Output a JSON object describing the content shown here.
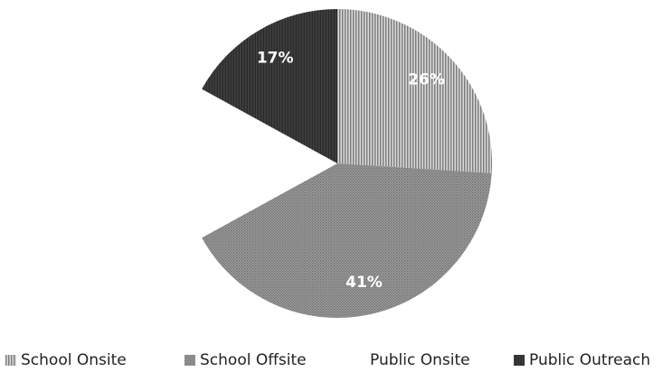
{
  "chart_data": {
    "type": "pie",
    "title": "",
    "categories": [
      "School Onsite",
      "School Offsite",
      "Public Onsite",
      "Public Outreach"
    ],
    "values": [
      26,
      41,
      16,
      17
    ],
    "labels": [
      "26%",
      "41%",
      "",
      "17%"
    ],
    "legend": {
      "placement": "bottom",
      "entries": [
        "School Onsite",
        "School Offsite",
        "Public Onsite",
        "Public Outreach"
      ]
    },
    "start_angle": "12 o'clock",
    "direction": "clockwise",
    "fills": [
      "vertical-stripes",
      "fine-dots",
      "none",
      "dense-dark"
    ],
    "colors": {
      "stripe_dark": "#7a7a7a",
      "stripe_light": "#d8d8d8",
      "dots_base": "#9a9a9a",
      "dots_dark": "#6b6b6b",
      "dense_base": "#2a2a2a",
      "dense_line": "#555555",
      "label_text": "#ffffff",
      "legend_text": "#222222"
    }
  }
}
